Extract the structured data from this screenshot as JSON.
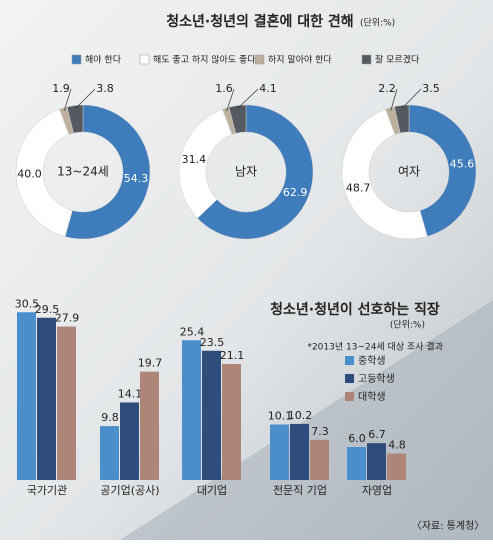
{
  "chart_data": [
    {
      "type": "donut",
      "title": "청소년·청년의 결혼에 대한 견해",
      "unit": "(단위:%)",
      "series": [
        {
          "name": "해야 한다",
          "color": "#3f7cbb"
        },
        {
          "name": "해도 좋고 하지 않아도 좋다",
          "color": "#ffffff"
        },
        {
          "name": "하지 말아야 한다",
          "color": "#bdb09c"
        },
        {
          "name": "잘 모르겠다",
          "color": "#555a60"
        }
      ],
      "pies": [
        {
          "label": "13~24세",
          "values": [
            54.3,
            40.0,
            1.9,
            3.8
          ],
          "value_labels": [
            "54.3",
            "40.0",
            "1.9",
            "3.8"
          ]
        },
        {
          "label": "남자",
          "values": [
            62.9,
            31.4,
            1.6,
            4.1
          ]
        },
        {
          "label": "여자",
          "values": [
            45.6,
            48.7,
            2.2,
            3.5
          ]
        }
      ]
    },
    {
      "type": "bar",
      "title": "청소년·청년이 선호하는 직장",
      "unit": "(단위:%)",
      "note": "*2013년 13~24세 대상 조사 결과",
      "source": "〈자료: 통계청〉",
      "categories": [
        "국가기관",
        "공기업(공사)",
        "대기업",
        "전문직 기업",
        "자영업"
      ],
      "series": [
        {
          "name": "중학생",
          "color": "#4a8fcb",
          "values": [
            30.5,
            9.8,
            25.4,
            10.1,
            6.0
          ],
          "value_labels": [
            "30.5",
            "9.8",
            "25.4",
            "10.1",
            "6.0"
          ]
        },
        {
          "name": "고등학생",
          "color": "#2f4d7c",
          "values": [
            29.5,
            14.1,
            23.5,
            10.2,
            6.7
          ]
        },
        {
          "name": "대학생",
          "color": "#ad8677",
          "values": [
            27.9,
            19.7,
            21.1,
            7.3,
            4.8
          ]
        }
      ]
    }
  ]
}
